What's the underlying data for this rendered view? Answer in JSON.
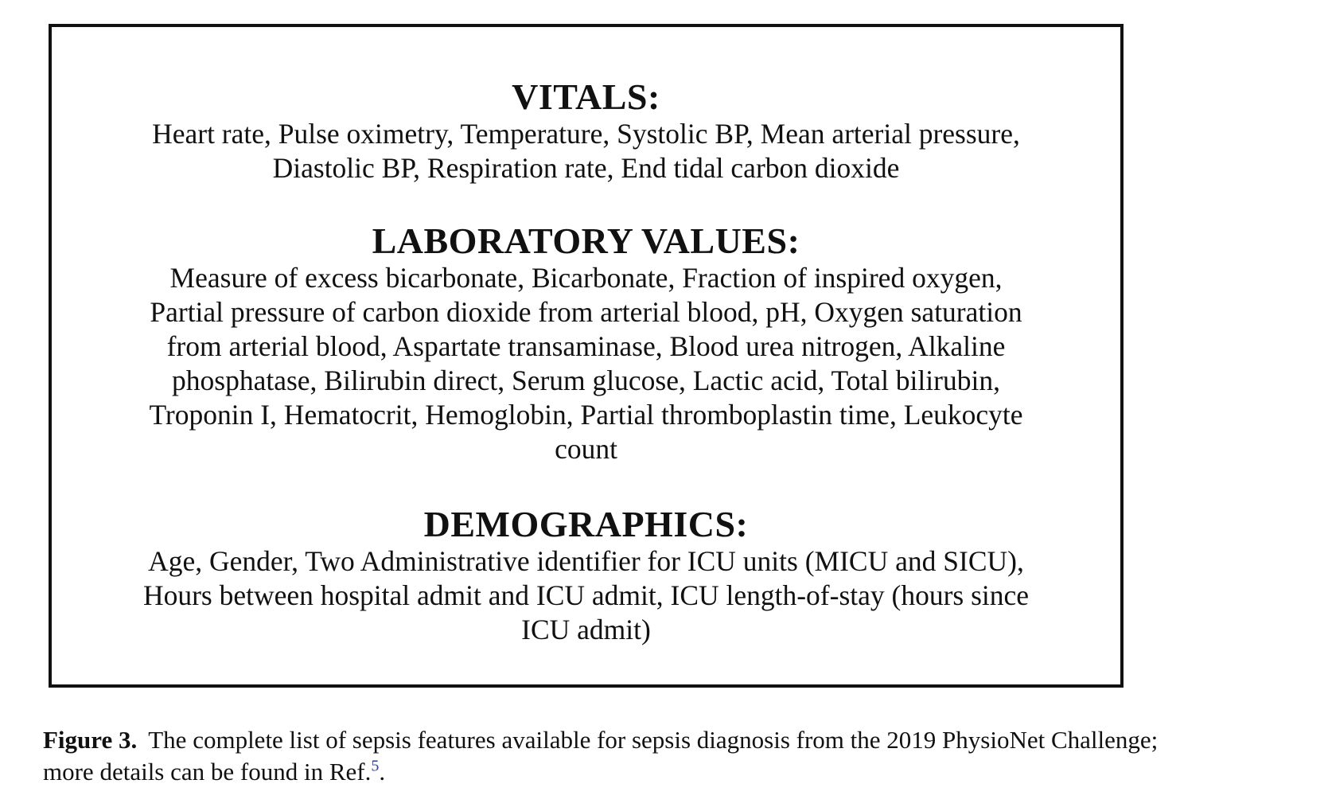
{
  "figure": {
    "sections": [
      {
        "title": "VITALS:",
        "lines": [
          "Heart rate, Pulse oximetry, Temperature, Systolic BP, Mean arterial pressure,",
          "Diastolic BP, Respiration rate, End tidal carbon dioxide"
        ]
      },
      {
        "title": "LABORATORY VALUES:",
        "lines": [
          "Measure of excess bicarbonate, Bicarbonate, Fraction of inspired oxygen,",
          "Partial pressure of carbon dioxide from arterial blood, pH, Oxygen saturation",
          "from arterial blood, Aspartate transaminase, Blood urea nitrogen, Alkaline",
          "phosphatase, Bilirubin direct, Serum glucose, Lactic acid, Total bilirubin,",
          "Troponin I, Hematocrit, Hemoglobin, Partial thromboplastin time, Leukocyte",
          "count"
        ]
      },
      {
        "title": "DEMOGRAPHICS:",
        "lines": [
          "Age, Gender, Two Administrative identifier for ICU units (MICU and SICU),",
          "Hours between hospital admit and ICU admit, ICU length-of-stay (hours since",
          "ICU admit)"
        ]
      }
    ]
  },
  "caption": {
    "label": "Figure 3.",
    "text_line1": "The complete list of sepsis features available for sepsis diagnosis from the 2019 PhysioNet Challenge;",
    "text_line2": "more details can be found in Ref.",
    "ref": "5",
    "end": "."
  },
  "colors": {
    "text": "#111111",
    "border": "#111111",
    "reference_link": "#2b3fa8"
  }
}
